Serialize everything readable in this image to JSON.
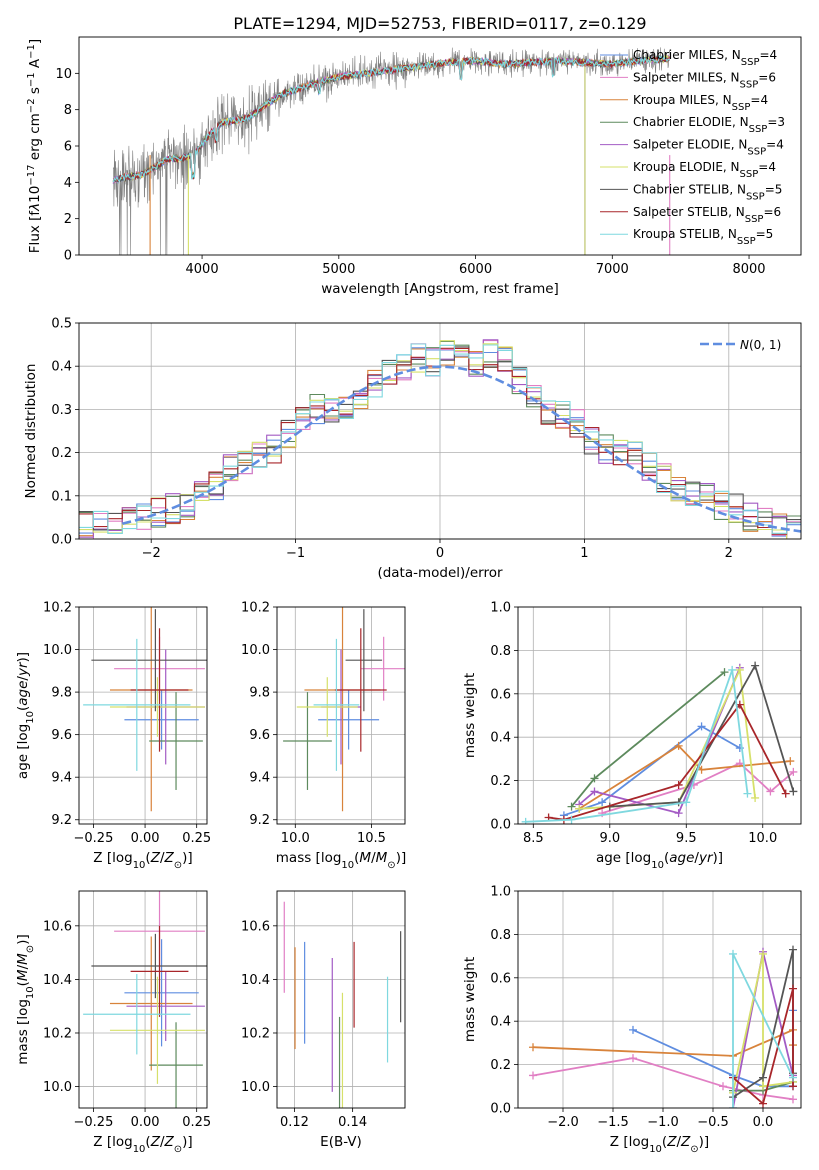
{
  "figure_title": "PLATE=1294, MJD=52753, FIBERID=0117, z=0.129",
  "chart_data": [
    {
      "id": "spectrum",
      "type": "line",
      "xlabel": "wavelength [Angstrom, rest frame]",
      "ylabel": "Flux [fλ10⁻¹⁷ erg cm⁻² s⁻¹ A⁻¹]",
      "xlim": [
        3100,
        8380
      ],
      "ylim": [
        0,
        12
      ],
      "xticks": [
        4000,
        5000,
        6000,
        7000,
        8000
      ],
      "yticks": [
        0,
        2,
        4,
        6,
        8,
        10
      ],
      "legend_position": "top-right",
      "data_color": "#808080",
      "continuum_x": [
        3350,
        3450,
        3550,
        3650,
        3750,
        3850,
        3950,
        4050,
        4150,
        4250,
        4350,
        4450,
        4600,
        4800,
        5000,
        5200,
        5400,
        5600,
        5800,
        6000,
        6200,
        6400,
        6600,
        6800,
        7000,
        7200,
        7400
      ],
      "continuum_y": [
        4.1,
        4.3,
        4.4,
        4.8,
        5.3,
        5.3,
        5.6,
        6.6,
        7.3,
        7.4,
        7.6,
        8.2,
        8.9,
        9.4,
        9.8,
        10.0,
        10.2,
        10.4,
        10.6,
        10.7,
        10.5,
        10.6,
        10.7,
        10.6,
        10.5,
        10.7,
        10.8
      ],
      "series": [
        {
          "name": "Chabrier MILES, N_SSP=4",
          "color": "#5f8de0"
        },
        {
          "name": "Salpeter MILES, N_SSP=6",
          "color": "#e17fc4"
        },
        {
          "name": "Kroupa MILES, N_SSP=4",
          "color": "#d8833b"
        },
        {
          "name": "Chabrier ELODIE, N_SSP=3",
          "color": "#5d8a5d"
        },
        {
          "name": "Salpeter ELODIE, N_SSP=4",
          "color": "#a35bc4"
        },
        {
          "name": "Kroupa ELODIE, N_SSP=4",
          "color": "#d6e06a"
        },
        {
          "name": "Chabrier STELIB, N_SSP=5",
          "color": "#555555"
        },
        {
          "name": "Salpeter STELIB, N_SSP=6",
          "color": "#a8262a"
        },
        {
          "name": "Kroupa STELIB, N_SSP=5",
          "color": "#7fd8df"
        }
      ]
    },
    {
      "id": "residuals",
      "type": "line",
      "xlabel": "(data-model)/error",
      "ylabel": "Normed distribution",
      "xlim": [
        -2.5,
        2.5
      ],
      "ylim": [
        0,
        0.5
      ],
      "xticks": [
        -2,
        -1,
        0,
        1,
        2
      ],
      "yticks": [
        0.0,
        0.1,
        0.2,
        0.3,
        0.4,
        0.5
      ],
      "grid": true,
      "legend_position": "top-right",
      "legend_label": "N(0,1)",
      "gauss_color": "#5f8de0",
      "histogram_x": [
        -2.5,
        -2.4,
        -2.3,
        -2.2,
        -2.1,
        -2.0,
        -1.9,
        -1.8,
        -1.7,
        -1.6,
        -1.5,
        -1.4,
        -1.3,
        -1.2,
        -1.1,
        -1.0,
        -0.9,
        -0.8,
        -0.7,
        -0.6,
        -0.5,
        -0.4,
        -0.3,
        -0.2,
        -0.1,
        0.0,
        0.1,
        0.2,
        0.3,
        0.4,
        0.5,
        0.6,
        0.7,
        0.8,
        0.9,
        1.0,
        1.1,
        1.2,
        1.3,
        1.4,
        1.5,
        1.6,
        1.7,
        1.8,
        1.9,
        2.0,
        2.1,
        2.2,
        2.3,
        2.4
      ],
      "histogram_base": [
        0.03,
        0.03,
        0.03,
        0.04,
        0.05,
        0.06,
        0.07,
        0.08,
        0.1,
        0.12,
        0.16,
        0.18,
        0.19,
        0.21,
        0.24,
        0.27,
        0.3,
        0.3,
        0.31,
        0.33,
        0.36,
        0.39,
        0.4,
        0.42,
        0.41,
        0.43,
        0.42,
        0.41,
        0.43,
        0.41,
        0.37,
        0.34,
        0.29,
        0.29,
        0.27,
        0.23,
        0.21,
        0.2,
        0.19,
        0.17,
        0.14,
        0.12,
        0.11,
        0.1,
        0.08,
        0.07,
        0.05,
        0.04,
        0.04,
        0.03
      ]
    },
    {
      "id": "age_vs_z",
      "type": "scatter",
      "xlabel": "Z [log10(Z/Z⊙)]",
      "ylabel": "age  [log10(age/yr)]",
      "xlim": [
        -0.32,
        0.3
      ],
      "ylim": [
        9.18,
        10.2
      ],
      "xticks": [
        -0.25,
        0.0,
        0.25
      ],
      "xtick_labels": [
        "−0.25",
        "0.00",
        "0.25"
      ],
      "yticks": [
        9.2,
        9.4,
        9.6,
        9.8,
        10.0,
        10.2
      ],
      "points": [
        {
          "series": 0,
          "x": 0.08,
          "y": 9.67,
          "xerr": 0.18,
          "yerr": 0.14
        },
        {
          "series": 1,
          "x": 0.07,
          "y": 9.91,
          "xerr": 0.22,
          "yerr": 0.15
        },
        {
          "series": 2,
          "x": 0.03,
          "y": 9.81,
          "xerr": 0.2,
          "yerr": 0.57
        },
        {
          "series": 3,
          "x": 0.15,
          "y": 9.57,
          "xerr": 0.13,
          "yerr": 0.23
        },
        {
          "series": 4,
          "x": 0.1,
          "y": 9.73,
          "xerr": 0.19,
          "yerr": 0.27
        },
        {
          "series": 5,
          "x": 0.06,
          "y": 9.73,
          "xerr": 0.23,
          "yerr": 0.14
        },
        {
          "series": 6,
          "x": 0.05,
          "y": 9.95,
          "xerr": 0.31,
          "yerr": 0.24
        },
        {
          "series": 7,
          "x": 0.07,
          "y": 9.81,
          "xerr": 0.14,
          "yerr": 0.29
        },
        {
          "series": 8,
          "x": -0.04,
          "y": 9.74,
          "xerr": 0.26,
          "yerr": 0.31
        }
      ]
    },
    {
      "id": "age_vs_mass",
      "type": "scatter",
      "xlabel": "mass [log10(M/M⊙)]",
      "xlim": [
        9.88,
        10.72
      ],
      "ylim": [
        9.18,
        10.2
      ],
      "xticks": [
        10.0,
        10.5
      ],
      "xtick_labels": [
        "10.0",
        "10.5"
      ],
      "yticks": [
        9.2,
        9.4,
        9.6,
        9.8,
        10.0,
        10.2
      ],
      "points": [
        {
          "series": 0,
          "x": 10.35,
          "y": 9.67,
          "xerr": 0.2,
          "yerr": 0.14
        },
        {
          "series": 1,
          "x": 10.58,
          "y": 9.91,
          "xerr": 0.15,
          "yerr": 0.15
        },
        {
          "series": 2,
          "x": 10.31,
          "y": 9.81,
          "xerr": 0.25,
          "yerr": 0.57
        },
        {
          "series": 3,
          "x": 10.08,
          "y": 9.57,
          "xerr": 0.16,
          "yerr": 0.23
        },
        {
          "series": 4,
          "x": 10.3,
          "y": 9.73,
          "xerr": 0.13,
          "yerr": 0.27
        },
        {
          "series": 5,
          "x": 10.21,
          "y": 9.73,
          "xerr": 0.2,
          "yerr": 0.14
        },
        {
          "series": 6,
          "x": 10.45,
          "y": 9.95,
          "xerr": 0.12,
          "yerr": 0.24
        },
        {
          "series": 7,
          "x": 10.43,
          "y": 9.81,
          "xerr": 0.17,
          "yerr": 0.29
        },
        {
          "series": 8,
          "x": 10.27,
          "y": 9.74,
          "xerr": 0.15,
          "yerr": 0.31
        }
      ]
    },
    {
      "id": "mass_weight_vs_age",
      "type": "line",
      "xlabel": "age  [log10(age/yr)]",
      "ylabel": "mass weight",
      "xlim": [
        8.4,
        10.25
      ],
      "ylim": [
        0,
        1
      ],
      "xticks": [
        8.5,
        9.0,
        9.5,
        10.0
      ],
      "xtick_labels": [
        "8.5",
        "9.0",
        "9.5",
        "10.0"
      ],
      "yticks": [
        0.0,
        0.2,
        0.4,
        0.6,
        0.8,
        1.0
      ],
      "grid": true,
      "series": [
        {
          "color": "#5f8de0",
          "x": [
            8.7,
            8.95,
            9.6,
            9.85
          ],
          "y": [
            0.04,
            0.1,
            0.45,
            0.35
          ]
        },
        {
          "color": "#e17fc4",
          "x": [
            8.95,
            9.55,
            9.85,
            10.05,
            10.2
          ],
          "y": [
            0.05,
            0.18,
            0.28,
            0.15,
            0.24
          ]
        },
        {
          "color": "#d8833b",
          "x": [
            8.8,
            9.45,
            9.6,
            10.18
          ],
          "y": [
            0.07,
            0.36,
            0.25,
            0.29
          ]
        },
        {
          "color": "#5d8a5d",
          "x": [
            8.75,
            8.9,
            9.75
          ],
          "y": [
            0.08,
            0.21,
            0.7
          ]
        },
        {
          "color": "#a35bc4",
          "x": [
            8.8,
            8.9,
            9.45,
            9.85
          ],
          "y": [
            0.09,
            0.15,
            0.05,
            0.72
          ]
        },
        {
          "color": "#d6e06a",
          "x": [
            8.8,
            9.45,
            9.85,
            9.95
          ],
          "y": [
            0.07,
            0.1,
            0.71,
            0.12
          ]
        },
        {
          "color": "#555555",
          "x": [
            9.0,
            9.45,
            9.95,
            10.2
          ],
          "y": [
            0.08,
            0.1,
            0.73,
            0.15
          ]
        },
        {
          "color": "#a8262a",
          "x": [
            8.6,
            8.7,
            9.45,
            9.85,
            10.15
          ],
          "y": [
            0.03,
            0.02,
            0.18,
            0.55,
            0.14
          ]
        },
        {
          "color": "#7fd8df",
          "x": [
            8.45,
            8.75,
            9.5,
            9.8,
            9.9
          ],
          "y": [
            0.01,
            0.02,
            0.1,
            0.71,
            0.14
          ]
        }
      ]
    },
    {
      "id": "mass_vs_z",
      "type": "scatter",
      "xlabel": "Z [log10(Z/Z⊙)]",
      "ylabel": "mass [log10(M/M⊙)]",
      "xlim": [
        -0.32,
        0.3
      ],
      "ylim": [
        9.92,
        10.73
      ],
      "xticks": [
        -0.25,
        0.0,
        0.25
      ],
      "xtick_labels": [
        "−0.25",
        "0.00",
        "0.25"
      ],
      "yticks": [
        10.0,
        10.2,
        10.4,
        10.6
      ],
      "points": [
        {
          "series": 0,
          "x": 0.08,
          "y": 10.35,
          "xerr": 0.18,
          "yerr": 0.2
        },
        {
          "series": 1,
          "x": 0.07,
          "y": 10.58,
          "xerr": 0.22,
          "yerr": 0.15
        },
        {
          "series": 2,
          "x": 0.03,
          "y": 10.31,
          "xerr": 0.2,
          "yerr": 0.25
        },
        {
          "series": 3,
          "x": 0.15,
          "y": 10.08,
          "xerr": 0.13,
          "yerr": 0.16
        },
        {
          "series": 4,
          "x": 0.1,
          "y": 10.3,
          "xerr": 0.19,
          "yerr": 0.13
        },
        {
          "series": 5,
          "x": 0.06,
          "y": 10.21,
          "xerr": 0.23,
          "yerr": 0.2
        },
        {
          "series": 6,
          "x": 0.05,
          "y": 10.45,
          "xerr": 0.31,
          "yerr": 0.12
        },
        {
          "series": 7,
          "x": 0.07,
          "y": 10.43,
          "xerr": 0.14,
          "yerr": 0.17
        },
        {
          "series": 8,
          "x": -0.04,
          "y": 10.27,
          "xerr": 0.26,
          "yerr": 0.15
        }
      ]
    },
    {
      "id": "mass_vs_ebv",
      "type": "scatter",
      "xlabel": "E(B-V)",
      "xlim": [
        0.114,
        0.158
      ],
      "ylim": [
        9.92,
        10.73
      ],
      "xticks": [
        0.12,
        0.14
      ],
      "xtick_labels": [
        "0.12",
        "0.14"
      ],
      "yticks": [
        10.0,
        10.2,
        10.4,
        10.6
      ],
      "points": [
        {
          "series": 0,
          "x": 0.1235,
          "y": 10.35,
          "yerr": 0.19
        },
        {
          "series": 1,
          "x": 0.1165,
          "y": 10.52,
          "yerr": 0.17
        },
        {
          "series": 2,
          "x": 0.1202,
          "y": 10.33,
          "yerr": 0.19
        },
        {
          "series": 3,
          "x": 0.1355,
          "y": 10.09,
          "yerr": 0.17
        },
        {
          "series": 4,
          "x": 0.133,
          "y": 10.23,
          "yerr": 0.25
        },
        {
          "series": 5,
          "x": 0.1365,
          "y": 10.12,
          "yerr": 0.23
        },
        {
          "series": 6,
          "x": 0.1565,
          "y": 10.41,
          "yerr": 0.17
        },
        {
          "series": 7,
          "x": 0.1405,
          "y": 10.38,
          "yerr": 0.16
        },
        {
          "series": 8,
          "x": 0.152,
          "y": 10.25,
          "yerr": 0.16
        }
      ]
    },
    {
      "id": "mass_weight_vs_z",
      "type": "line",
      "xlabel": "Z [log10(Z/Z⊙)]",
      "ylabel": "mass weight",
      "xlim": [
        -2.45,
        0.38
      ],
      "ylim": [
        0,
        1
      ],
      "xticks": [
        -2.0,
        -1.5,
        -1.0,
        -0.5,
        0.0
      ],
      "xtick_labels": [
        "−2.0",
        "−1.5",
        "−1.0",
        "−0.5",
        "0.0"
      ],
      "yticks": [
        0.0,
        0.2,
        0.4,
        0.6,
        0.8,
        1.0
      ],
      "grid": true,
      "series": [
        {
          "color": "#5f8de0",
          "x": [
            -1.3,
            -0.3,
            0.0,
            0.3,
            0.3
          ],
          "y": [
            0.36,
            0.15,
            0.1,
            0.1,
            0.45
          ]
        },
        {
          "color": "#e17fc4",
          "x": [
            -2.3,
            -1.3,
            -0.4,
            0.0,
            0.3
          ],
          "y": [
            0.15,
            0.23,
            0.1,
            0.06,
            0.04
          ]
        },
        {
          "color": "#d8833b",
          "x": [
            -2.3,
            -0.3,
            0.3,
            0.3
          ],
          "y": [
            0.28,
            0.24,
            0.36,
            0.29
          ]
        },
        {
          "color": "#5d8a5d",
          "x": [
            -0.3,
            0.0,
            0.3
          ],
          "y": [
            0.08,
            0.08,
            0.12
          ]
        },
        {
          "color": "#a35bc4",
          "x": [
            -0.3,
            0.0,
            0.3
          ],
          "y": [
            0.0,
            0.72,
            0.15
          ]
        },
        {
          "color": "#d6e06a",
          "x": [
            -0.3,
            0.0,
            0.0,
            0.3
          ],
          "y": [
            0.07,
            0.71,
            0.1,
            0.12
          ]
        },
        {
          "color": "#555555",
          "x": [
            -0.3,
            0.0,
            0.3,
            0.3
          ],
          "y": [
            0.05,
            0.14,
            0.73,
            0.16
          ]
        },
        {
          "color": "#a8262a",
          "x": [
            -0.3,
            0.0,
            0.3,
            0.3
          ],
          "y": [
            0.14,
            0.02,
            0.55,
            0.1
          ]
        },
        {
          "color": "#7fd8df",
          "x": [
            -0.3,
            -0.3,
            0.3
          ],
          "y": [
            0.0,
            0.71,
            0.14
          ]
        }
      ]
    }
  ]
}
